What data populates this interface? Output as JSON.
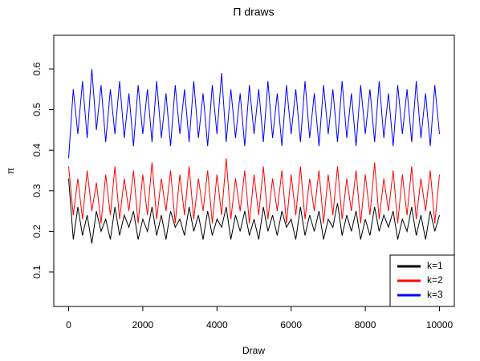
{
  "chart_data": {
    "type": "line",
    "title": "Π draws",
    "xlabel": "Draw",
    "ylabel": "π",
    "xlim": [
      -400,
      10400
    ],
    "ylim": [
      0.015,
      0.683
    ],
    "xticks": [
      0,
      2000,
      4000,
      6000,
      8000,
      10000
    ],
    "yticks": [
      0.1,
      0.2,
      0.3,
      0.4,
      0.5,
      0.6
    ],
    "legend": "bottomright",
    "x": [
      0,
      125,
      250,
      375,
      500,
      625,
      750,
      875,
      1000,
      1125,
      1250,
      1375,
      1500,
      1625,
      1750,
      1875,
      2000,
      2125,
      2250,
      2375,
      2500,
      2625,
      2750,
      2875,
      3000,
      3125,
      3250,
      3375,
      3500,
      3625,
      3750,
      3875,
      4000,
      4125,
      4250,
      4375,
      4500,
      4625,
      4750,
      4875,
      5000,
      5125,
      5250,
      5375,
      5500,
      5625,
      5750,
      5875,
      6000,
      6125,
      6250,
      6375,
      6500,
      6625,
      6750,
      6875,
      7000,
      7125,
      7250,
      7375,
      7500,
      7625,
      7750,
      7875,
      8000,
      8125,
      8250,
      8375,
      8500,
      8625,
      8750,
      8875,
      9000,
      9125,
      9250,
      9375,
      9500,
      9625,
      9750,
      9875,
      10000
    ],
    "series": [
      {
        "name": "k=1",
        "color": "#000000",
        "values": [
          0.33,
          0.18,
          0.26,
          0.19,
          0.24,
          0.17,
          0.25,
          0.2,
          0.23,
          0.18,
          0.26,
          0.19,
          0.24,
          0.21,
          0.25,
          0.18,
          0.23,
          0.2,
          0.26,
          0.19,
          0.24,
          0.18,
          0.25,
          0.21,
          0.23,
          0.19,
          0.26,
          0.2,
          0.24,
          0.18,
          0.25,
          0.19,
          0.23,
          0.21,
          0.26,
          0.18,
          0.24,
          0.2,
          0.25,
          0.19,
          0.23,
          0.18,
          0.26,
          0.2,
          0.24,
          0.19,
          0.25,
          0.21,
          0.23,
          0.18,
          0.26,
          0.19,
          0.24,
          0.2,
          0.25,
          0.18,
          0.23,
          0.21,
          0.27,
          0.19,
          0.24,
          0.2,
          0.25,
          0.18,
          0.23,
          0.19,
          0.26,
          0.2,
          0.24,
          0.21,
          0.25,
          0.18,
          0.23,
          0.2,
          0.26,
          0.19,
          0.24,
          0.18,
          0.25,
          0.2,
          0.24
        ]
      },
      {
        "name": "k=2",
        "color": "#ff0000",
        "values": [
          0.36,
          0.24,
          0.33,
          0.23,
          0.35,
          0.25,
          0.32,
          0.22,
          0.34,
          0.24,
          0.36,
          0.23,
          0.33,
          0.25,
          0.35,
          0.22,
          0.34,
          0.24,
          0.37,
          0.23,
          0.33,
          0.25,
          0.35,
          0.22,
          0.34,
          0.24,
          0.36,
          0.23,
          0.33,
          0.25,
          0.35,
          0.22,
          0.34,
          0.24,
          0.38,
          0.23,
          0.33,
          0.25,
          0.35,
          0.22,
          0.34,
          0.24,
          0.36,
          0.23,
          0.33,
          0.25,
          0.35,
          0.22,
          0.34,
          0.24,
          0.36,
          0.23,
          0.33,
          0.25,
          0.35,
          0.22,
          0.34,
          0.24,
          0.36,
          0.23,
          0.33,
          0.25,
          0.35,
          0.22,
          0.34,
          0.24,
          0.37,
          0.23,
          0.33,
          0.25,
          0.35,
          0.22,
          0.34,
          0.24,
          0.36,
          0.23,
          0.33,
          0.25,
          0.35,
          0.22,
          0.34
        ]
      },
      {
        "name": "k=3",
        "color": "#0000ff",
        "values": [
          0.38,
          0.55,
          0.44,
          0.57,
          0.43,
          0.6,
          0.45,
          0.56,
          0.42,
          0.55,
          0.44,
          0.57,
          0.43,
          0.54,
          0.41,
          0.56,
          0.44,
          0.55,
          0.42,
          0.57,
          0.43,
          0.54,
          0.41,
          0.56,
          0.44,
          0.55,
          0.42,
          0.57,
          0.43,
          0.54,
          0.41,
          0.56,
          0.44,
          0.59,
          0.42,
          0.55,
          0.43,
          0.54,
          0.41,
          0.56,
          0.44,
          0.55,
          0.42,
          0.57,
          0.43,
          0.54,
          0.41,
          0.56,
          0.44,
          0.55,
          0.42,
          0.57,
          0.43,
          0.54,
          0.41,
          0.56,
          0.44,
          0.55,
          0.42,
          0.57,
          0.43,
          0.54,
          0.41,
          0.56,
          0.44,
          0.55,
          0.42,
          0.57,
          0.43,
          0.54,
          0.41,
          0.56,
          0.44,
          0.55,
          0.42,
          0.57,
          0.43,
          0.54,
          0.41,
          0.56,
          0.44
        ]
      }
    ]
  }
}
